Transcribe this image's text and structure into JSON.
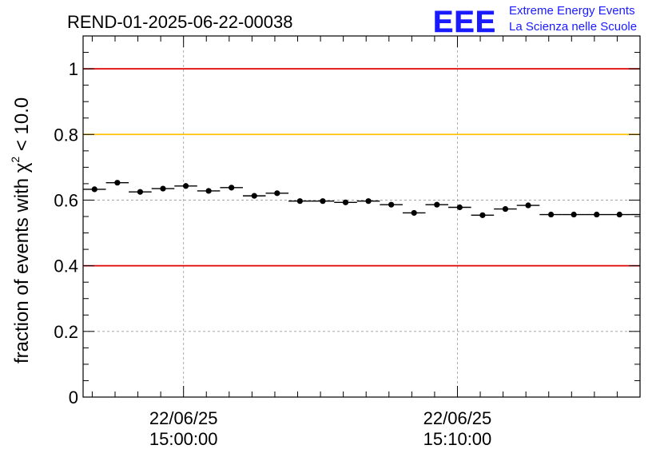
{
  "chart_data": {
    "type": "scatter",
    "title": "REND-01-2025-06-22-00038",
    "ylabel_main": "fraction of events with χ",
    "ylabel_sup": "2",
    "ylabel_tail": " < 10.0",
    "xlabel": "",
    "ylim": [
      0,
      1.1
    ],
    "yticks": [
      "0",
      "0.2",
      "0.4",
      "0.6",
      "0.8",
      "1"
    ],
    "ytick_values": [
      0,
      0.2,
      0.4,
      0.6,
      0.8,
      1.0
    ],
    "xlim": [
      "22/06/25 14:56:20",
      "22/06/25 15:16:40"
    ],
    "xticks": [
      {
        "date": "22/06/25",
        "time": "15:00:00",
        "t_seconds": 220
      },
      {
        "date": "22/06/25",
        "time": "15:10:00",
        "t_seconds": 820
      }
    ],
    "x_span_seconds": 1220,
    "bin_width_seconds": 50,
    "grid": true,
    "reference_lines": [
      {
        "y": 1.0,
        "color": "#e00000"
      },
      {
        "y": 0.8,
        "color": "#ffc000"
      },
      {
        "y": 0.4,
        "color": "#e00000"
      }
    ],
    "series": [
      {
        "color": "#000000",
        "x_seconds": [
          25,
          75,
          125,
          175,
          225,
          275,
          325,
          375,
          425,
          475,
          525,
          575,
          625,
          675,
          725,
          775,
          825,
          875,
          925,
          975,
          1025,
          1075,
          1125,
          1175,
          1225
        ],
        "values": [
          0.633,
          0.653,
          0.625,
          0.635,
          0.643,
          0.628,
          0.638,
          0.613,
          0.621,
          0.597,
          0.597,
          0.593,
          0.597,
          0.586,
          0.561,
          0.586,
          0.578,
          0.554,
          0.573,
          0.584,
          0.556,
          0.556,
          0.556,
          0.556,
          0.556
        ]
      }
    ]
  },
  "logo": {
    "mark": "EEE",
    "line1": "Extreme Energy Events",
    "line2": "La Scienza nelle Scuole",
    "color": "#1a1aff"
  }
}
